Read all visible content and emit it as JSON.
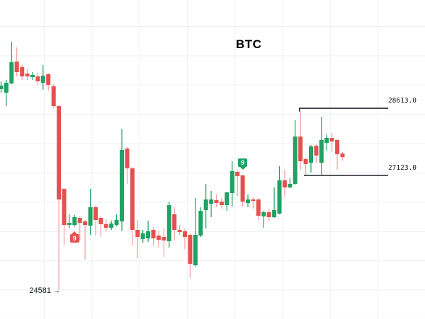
{
  "header": {
    "title": "BTC"
  },
  "colors": {
    "up": "#1fa263",
    "up_wick": "#1fa263",
    "down": "#e4514e",
    "down_wick": "#f0a09d",
    "grid": "#edf0f4",
    "resistance_line": "#23262b",
    "support_line": "#55585e",
    "label_text": "#14171c",
    "badge_text": "#ffffff",
    "background": "#ffffff"
  },
  "levels": [
    {
      "id": "resistance",
      "price": 28613.0,
      "label": "28613.0"
    },
    {
      "id": "support",
      "price": 27123.0,
      "label": "27123.0"
    }
  ],
  "low_marker": {
    "text": "24581",
    "arrow": "→",
    "price": 24581
  },
  "badges": [
    {
      "label": "9",
      "color": "down",
      "position": "below",
      "candle_index": 14
    },
    {
      "label": "9",
      "color": "up",
      "position": "above",
      "candle_index": 46
    }
  ],
  "chart_data": {
    "type": "candlestick",
    "title": "BTC",
    "xlabel": "",
    "ylabel": "",
    "grid": true,
    "legend": false,
    "y_visible_range": [
      24300,
      30400
    ],
    "annotations": {
      "resistance_level": 28613.0,
      "support_level": 27123.0,
      "low_label": 24581,
      "td_setup_badges": [
        {
          "candle_index": 14,
          "text": "9",
          "placement": "below-candle"
        },
        {
          "candle_index": 46,
          "text": "9",
          "placement": "above-candle"
        }
      ]
    },
    "series": [
      {
        "name": "BTC",
        "format": "ohlc [open, high, low, close]",
        "ohlc": [
          [
            29038,
            29211,
            28960,
            29117
          ],
          [
            28960,
            29242,
            28662,
            29180
          ],
          [
            29164,
            30090,
            29148,
            29635
          ],
          [
            29651,
            29965,
            29321,
            29415
          ],
          [
            29525,
            29572,
            29242,
            29321
          ],
          [
            29384,
            29478,
            29242,
            29321
          ],
          [
            29305,
            29415,
            29242,
            29352
          ],
          [
            29321,
            29400,
            29133,
            29211
          ],
          [
            29180,
            29572,
            29023,
            29337
          ],
          [
            29368,
            29400,
            29007,
            29133
          ],
          [
            29101,
            29148,
            28614,
            28662
          ],
          [
            28662,
            28693,
            24581,
            26589
          ],
          [
            26825,
            26840,
            25569,
            26025
          ],
          [
            26025,
            26260,
            25946,
            26071
          ],
          [
            26025,
            26244,
            25993,
            26197
          ],
          [
            26181,
            26213,
            25679,
            26071
          ],
          [
            26103,
            26134,
            25255,
            26025
          ],
          [
            26009,
            26825,
            25804,
            26417
          ],
          [
            26417,
            26464,
            25789,
            26134
          ],
          [
            26181,
            26213,
            25757,
            26040
          ],
          [
            26040,
            26150,
            25883,
            25961
          ],
          [
            25961,
            26119,
            25914,
            26056
          ],
          [
            26025,
            26260,
            25993,
            26134
          ],
          [
            26103,
            28159,
            25883,
            27688
          ],
          [
            27720,
            27751,
            26935,
            27280
          ],
          [
            27280,
            27311,
            25569,
            25914
          ],
          [
            25914,
            26134,
            25286,
            25757
          ],
          [
            25710,
            25914,
            25632,
            25836
          ],
          [
            25726,
            26119,
            25648,
            25883
          ],
          [
            25914,
            25977,
            25569,
            25726
          ],
          [
            25789,
            25883,
            25522,
            25694
          ],
          [
            25757,
            25961,
            25318,
            25679
          ],
          [
            25663,
            26542,
            25522,
            26464
          ],
          [
            26260,
            26417,
            25679,
            25914
          ],
          [
            25914,
            26025,
            25804,
            25867
          ],
          [
            25883,
            25946,
            25490,
            25757
          ],
          [
            25804,
            25836,
            24846,
            25161
          ],
          [
            25129,
            26621,
            25098,
            25804
          ],
          [
            25789,
            26417,
            25757,
            26338
          ],
          [
            26354,
            26935,
            25946,
            26589
          ],
          [
            26495,
            26778,
            26197,
            26589
          ],
          [
            26573,
            26699,
            26417,
            26511
          ],
          [
            26542,
            26621,
            26385,
            26464
          ],
          [
            26464,
            26762,
            26338,
            26746
          ],
          [
            26731,
            27437,
            26432,
            27217
          ],
          [
            27202,
            27233,
            26668,
            27107
          ],
          [
            27123,
            27139,
            26432,
            26542
          ],
          [
            26511,
            26699,
            26417,
            26589
          ],
          [
            26589,
            26652,
            26385,
            26558
          ],
          [
            26589,
            26621,
            26119,
            26228
          ],
          [
            26213,
            26338,
            25961,
            26307
          ],
          [
            26307,
            26385,
            26103,
            26197
          ],
          [
            26197,
            26856,
            26181,
            26354
          ],
          [
            26275,
            27327,
            26260,
            27013
          ],
          [
            27013,
            27249,
            26652,
            26856
          ],
          [
            26856,
            27060,
            26840,
            26935
          ],
          [
            26935,
            28348,
            26919,
            27987
          ],
          [
            27987,
            28551,
            27249,
            27437
          ],
          [
            27484,
            27516,
            27107,
            27374
          ],
          [
            27406,
            27798,
            27186,
            27767
          ],
          [
            27782,
            27814,
            27406,
            27563
          ],
          [
            27406,
            28426,
            27139,
            27908
          ],
          [
            27845,
            28034,
            27673,
            27955
          ],
          [
            27955,
            28065,
            27641,
            27877
          ],
          [
            27908,
            27939,
            27249,
            27594
          ],
          [
            27610,
            27641,
            27453,
            27531
          ]
        ]
      }
    ]
  }
}
